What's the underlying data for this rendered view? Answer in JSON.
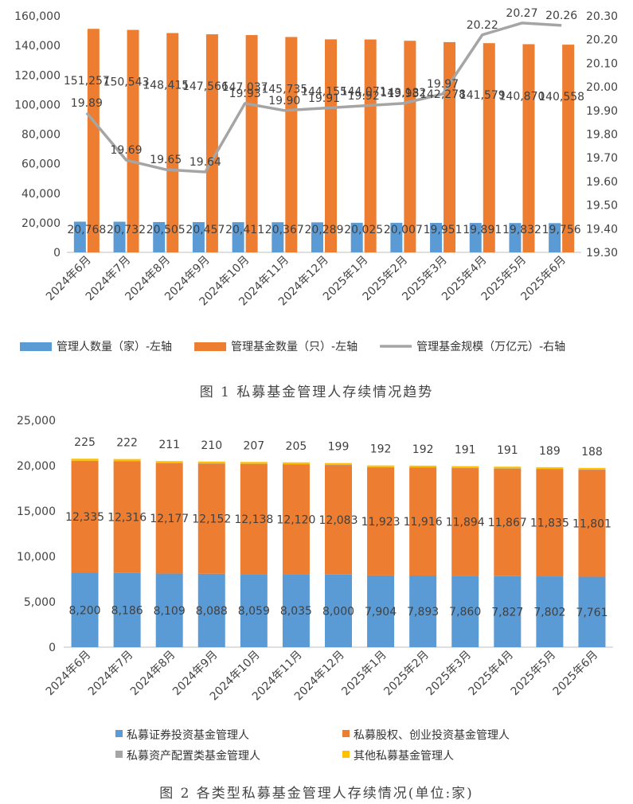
{
  "chart1": {
    "caption": "图 1 私募基金管理人存续情况趋势",
    "chart_data": {
      "type": "bar+line",
      "categories": [
        "2024年6月",
        "2024年7月",
        "2024年8月",
        "2024年9月",
        "2024年10月",
        "2024年11月",
        "2024年12月",
        "2025年1月",
        "2025年2月",
        "2025年3月",
        "2025年4月",
        "2025年5月",
        "2025年6月"
      ],
      "series": [
        {
          "name": "管理人数量（家）-左轴",
          "type": "bar",
          "axis": "left",
          "color": "#5B9BD5",
          "values": [
            20768,
            20732,
            20505,
            20457,
            20411,
            20367,
            20289,
            20025,
            20007,
            19951,
            19891,
            19832,
            19756
          ],
          "labels": [
            "20,768",
            "20,732",
            "20,505",
            "20,457",
            "20,411",
            "20,367",
            "20,289",
            "20,025",
            "20,007",
            "19,951",
            "19,891",
            "19,832",
            "19,756"
          ]
        },
        {
          "name": "管理基金数量（只）-左轴",
          "type": "bar",
          "axis": "left",
          "color": "#ED7D31",
          "values": [
            151257,
            150543,
            148415,
            147566,
            147037,
            145735,
            144155,
            144071,
            143182,
            142278,
            141579,
            140870,
            140558
          ],
          "labels": [
            "151,257",
            "150,543",
            "148,415",
            "147,566",
            "147,037",
            "145,735",
            "144,155",
            "144,071",
            "143,182",
            "142,278",
            "141,579",
            "140,870",
            "140,558"
          ]
        },
        {
          "name": "管理基金规模（万亿元）-右轴",
          "type": "line",
          "axis": "right",
          "color": "#A5A5A5",
          "values": [
            19.89,
            19.69,
            19.65,
            19.64,
            19.93,
            19.9,
            19.91,
            19.92,
            19.93,
            19.97,
            20.22,
            20.27,
            20.26
          ],
          "labels": [
            "19.89",
            "19.69",
            "19.65",
            "19.64",
            "19.93",
            "19.90",
            "19.91",
            "19.92",
            "19.93",
            "19.97",
            "20.22",
            "20.27",
            "20.26"
          ]
        }
      ],
      "yleft": {
        "min": 0,
        "max": 160000,
        "step": 20000,
        "ticks": [
          "0",
          "20,000",
          "40,000",
          "60,000",
          "80,000",
          "100,000",
          "120,000",
          "140,000",
          "160,000"
        ]
      },
      "yright": {
        "min": 19.3,
        "max": 20.3,
        "step": 0.1,
        "ticks": [
          "19.30",
          "19.40",
          "19.50",
          "19.60",
          "19.70",
          "19.80",
          "19.90",
          "20.00",
          "20.10",
          "20.20",
          "20.30"
        ]
      },
      "legend_position": "bottom"
    }
  },
  "chart2": {
    "caption": "图 2 各类型私募基金管理人存续情况(单位:家)",
    "chart_data": {
      "type": "stacked-bar",
      "categories": [
        "2024年6月",
        "2024年7月",
        "2024年8月",
        "2024年9月",
        "2024年10月",
        "2024年11月",
        "2024年12月",
        "2025年1月",
        "2025年2月",
        "2025年3月",
        "2025年4月",
        "2025年5月",
        "2025年6月"
      ],
      "series": [
        {
          "name": "私募证券投资基金管理人",
          "color": "#5B9BD5",
          "values": [
            8200,
            8186,
            8109,
            8088,
            8059,
            8035,
            8000,
            7904,
            7893,
            7860,
            7827,
            7802,
            7761
          ],
          "labels": [
            "8,200",
            "8,186",
            "8,109",
            "8,088",
            "8,059",
            "8,035",
            "8,000",
            "7,904",
            "7,893",
            "7,860",
            "7,827",
            "7,802",
            "7,761"
          ]
        },
        {
          "name": "私募股权、创业投资基金管理人",
          "color": "#ED7D31",
          "values": [
            12335,
            12316,
            12177,
            12152,
            12138,
            12120,
            12083,
            11923,
            11916,
            11894,
            11867,
            11835,
            11801
          ],
          "labels": [
            "12,335",
            "12,316",
            "12,177",
            "12,152",
            "12,138",
            "12,120",
            "12,083",
            "11,923",
            "11,916",
            "11,894",
            "11,867",
            "11,835",
            "11,801"
          ]
        },
        {
          "name": "私募资产配置类基金管理人",
          "color": "#A5A5A5",
          "values": [
            8,
            9,
            9,
            7,
            7,
            7,
            7,
            6,
            6,
            6,
            6,
            6,
            6
          ],
          "labels": []
        },
        {
          "name": "其他私募基金管理人",
          "color": "#FFC000",
          "values": [
            225,
            222,
            211,
            210,
            207,
            205,
            199,
            192,
            192,
            191,
            191,
            189,
            188
          ],
          "labels": [
            "225",
            "222",
            "211",
            "210",
            "207",
            "205",
            "199",
            "192",
            "192",
            "191",
            "191",
            "189",
            "188"
          ]
        }
      ],
      "yleft": {
        "min": 0,
        "max": 25000,
        "step": 5000,
        "ticks": [
          "0",
          "5,000",
          "10,000",
          "15,000",
          "20,000",
          "25,000"
        ]
      },
      "legend_position": "bottom"
    }
  }
}
